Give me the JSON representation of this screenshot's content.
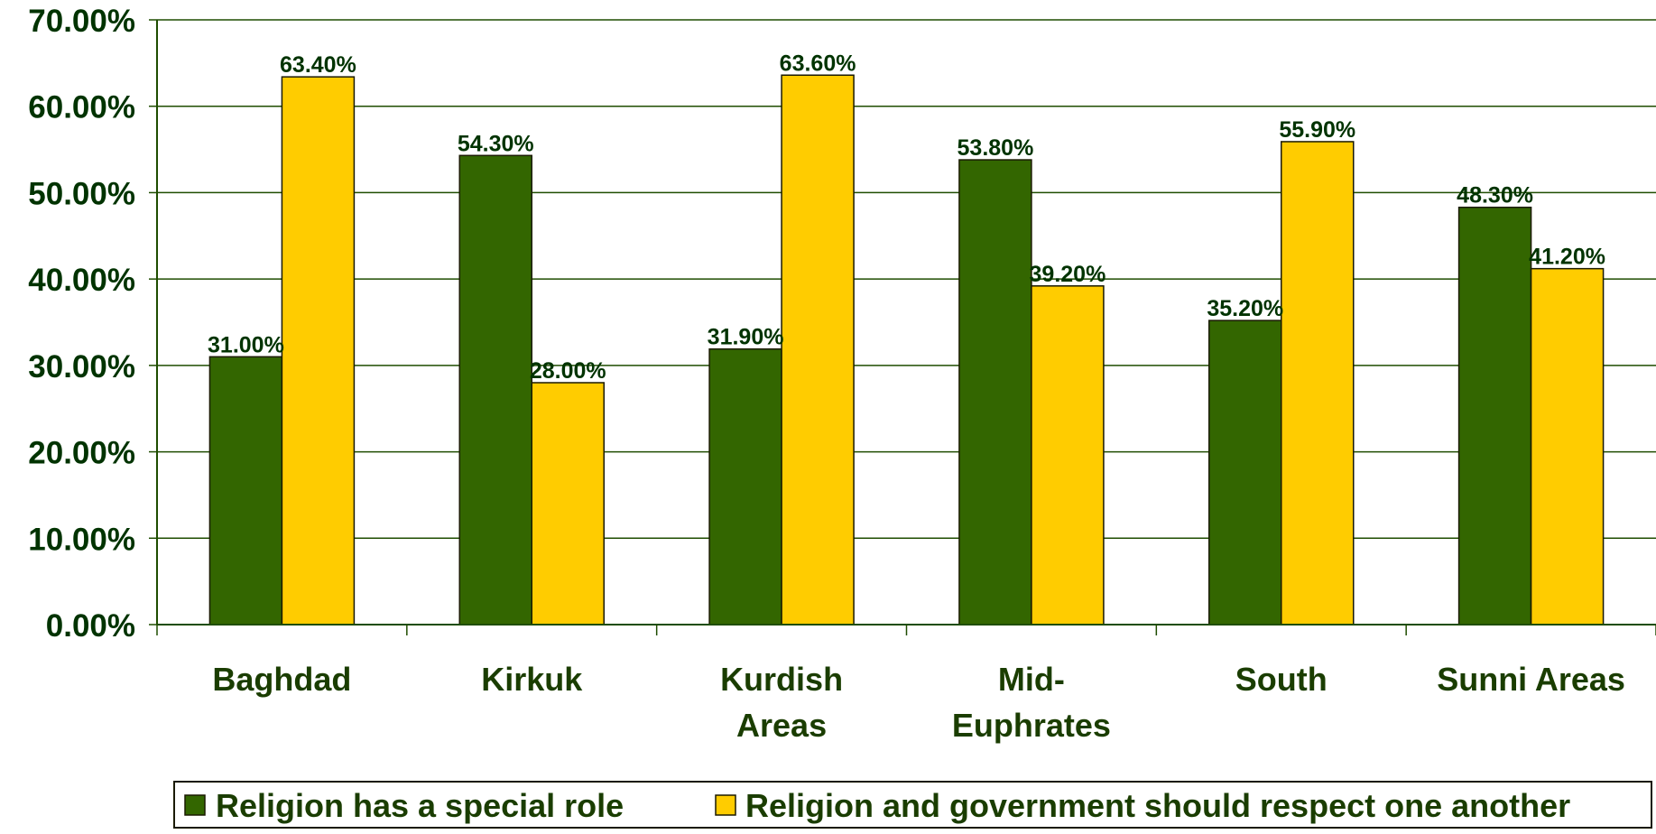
{
  "colors": {
    "series_1": "#336600",
    "series_2": "#FFCC00",
    "text": "#003300",
    "category_text": "#1a3d00",
    "grid": "#1f4d00",
    "bar_outline": "#1a1a00"
  },
  "chart_data": {
    "type": "bar",
    "categories": [
      "Baghdad",
      "Kirkuk",
      "Kurdish Areas",
      "Mid-Euphrates",
      "South",
      "Sunni Areas"
    ],
    "category_label_lines": [
      [
        "Baghdad"
      ],
      [
        "Kirkuk"
      ],
      [
        "Kurdish",
        "Areas"
      ],
      [
        "Mid-",
        "Euphrates"
      ],
      [
        "South"
      ],
      [
        "Sunni Areas"
      ]
    ],
    "series": [
      {
        "name": "Religion has a special role",
        "values": [
          31.0,
          54.3,
          31.9,
          53.8,
          35.2,
          48.3
        ],
        "labels": [
          "31.00%",
          "54.30%",
          "31.90%",
          "53.80%",
          "35.20%",
          "48.30%"
        ]
      },
      {
        "name": "Religion and government should respect one another",
        "values": [
          63.4,
          28.0,
          63.6,
          39.2,
          55.9,
          41.2
        ],
        "labels": [
          "63.40%",
          "28.00%",
          "63.60%",
          "39.20%",
          "55.90%",
          "41.20%"
        ]
      }
    ],
    "ylim": [
      0,
      70
    ],
    "yticks": [
      0,
      10,
      20,
      30,
      40,
      50,
      60,
      70
    ],
    "ytick_labels": [
      "0.00%",
      "10.00%",
      "20.00%",
      "30.00%",
      "40.00%",
      "50.00%",
      "60.00%",
      "70.00%"
    ],
    "title": "",
    "xlabel": "",
    "ylabel": "",
    "grid": true,
    "legend_position": "bottom"
  }
}
